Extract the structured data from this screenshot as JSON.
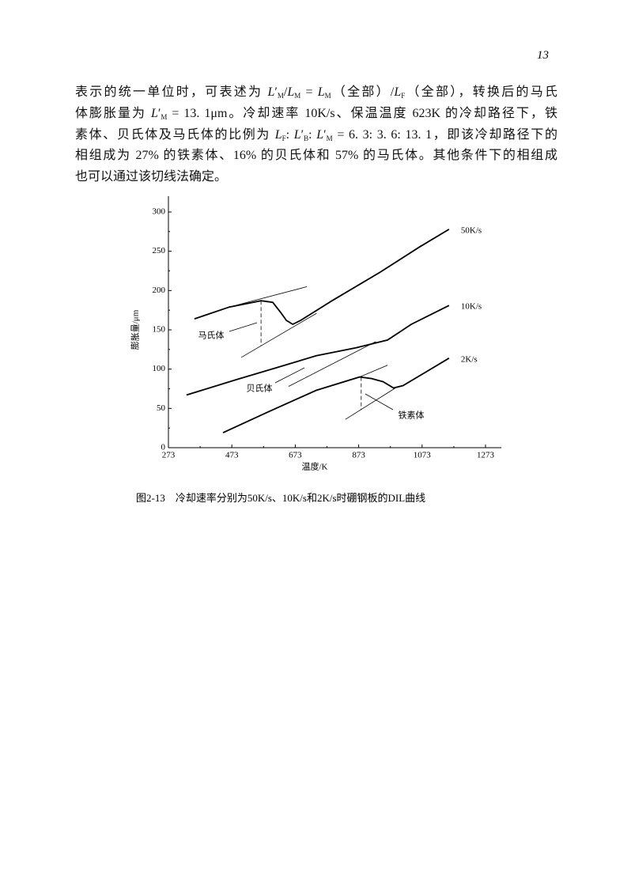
{
  "page_number": "13",
  "paragraph": [
    [
      "表示的统一单位时，可表述为 ",
      {
        "em": "L"
      },
      "′",
      {
        "sub": "M"
      },
      "/",
      {
        "em": "L"
      },
      {
        "sub": "M"
      },
      " = ",
      {
        "em": "L"
      },
      {
        "sub": "M"
      },
      "（全部）/",
      {
        "em": "L"
      },
      {
        "sub": "F"
      },
      "（全部），转换后的马氏"
    ],
    [
      "体膨胀量为 ",
      {
        "em": "L"
      },
      "′",
      {
        "sub": "M"
      },
      " = 13. 1μm。冷却速率 10K/s、保温温度 623K 的冷却路径下，铁"
    ],
    [
      "素体、贝氏体及马氏体的比例为 ",
      {
        "em": "L"
      },
      {
        "sub": "F"
      },
      ": ",
      {
        "em": "L"
      },
      "′",
      {
        "sub": "B"
      },
      ": ",
      {
        "em": "L"
      },
      "′",
      {
        "sub": "M"
      },
      " = 6. 3: 3. 6: 13. 1，即该冷却路径下的"
    ],
    [
      "相组成为 27% 的铁素体、16% 的贝氏体和 57% 的马氏体。其他条件下的相组成"
    ],
    [
      "也可以通过该切线法确定。"
    ]
  ],
  "chart_data": {
    "type": "line",
    "x_label": "温度/K",
    "y_label": "膨胀量/μm",
    "xlim": [
      273,
      1273
    ],
    "xticks": [
      273,
      473,
      673,
      873,
      1073,
      1273
    ],
    "ylim": [
      0,
      300
    ],
    "yticks": [
      0,
      50,
      100,
      150,
      200,
      250,
      300
    ],
    "color": "#000000",
    "series": [
      {
        "name": "50K/s",
        "x": [
          355,
          465,
          565,
          602,
          627,
          645,
          665,
          690,
          789,
          939,
          1063,
          1158
        ],
        "values": [
          164,
          179,
          187,
          185,
          172,
          162,
          157,
          162,
          187,
          223,
          255,
          278
        ]
      },
      {
        "name": "10K/s",
        "x": [
          330,
          490,
          615,
          739,
          864,
          964,
          1039,
          1158
        ],
        "values": [
          67,
          87,
          102,
          117,
          127,
          137,
          157,
          181
        ]
      },
      {
        "name": "2K/s",
        "x": [
          445,
          590,
          739,
          876,
          914,
          950,
          983,
          1013,
          1088,
          1158
        ],
        "values": [
          19,
          46,
          73,
          90,
          88,
          84,
          76,
          79,
          97,
          114
        ]
      }
    ],
    "tangents": [
      {
        "x": [
          465,
          710
        ],
        "values": [
          179,
          205
        ]
      },
      {
        "x": [
          503,
          740
        ],
        "values": [
          115,
          171
        ]
      },
      {
        "x": [
          565,
          565
        ],
        "values": [
          187,
          130
        ],
        "dashed": true
      },
      {
        "x": [
          652,
          927
        ],
        "values": [
          78,
          135
        ]
      },
      {
        "x": [
          831,
          989
        ],
        "values": [
          36,
          76
        ]
      },
      {
        "x": [
          876,
          964
        ],
        "values": [
          90,
          105
        ]
      },
      {
        "x": [
          881,
          881
        ],
        "values": [
          90,
          48
        ],
        "dashed": true
      }
    ],
    "annotations": [
      "马氏体",
      "贝氏体",
      "铁素体"
    ]
  },
  "caption": "图2-13　冷却速率分别为50K/s、10K/s和2K/s时硼钢板的DIL曲线"
}
